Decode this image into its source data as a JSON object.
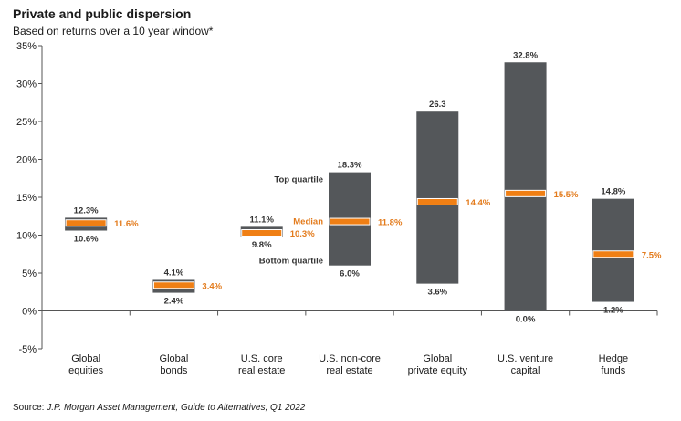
{
  "header": {
    "title": "Private and public dispersion",
    "subtitle": "Based on returns over a 10 year window*"
  },
  "footer": {
    "source_prefix": "Source: ",
    "source_body": "J.P. Morgan Asset Management, Guide to Alternatives, Q1 2022"
  },
  "colors": {
    "box": "#54575a",
    "median": "#f07f14",
    "median_text": "#e37b1c",
    "axis": "#555555"
  },
  "chart_data": {
    "type": "box",
    "title": "Private and public dispersion",
    "subtitle": "Based on returns over a 10 year window*",
    "ylim": [
      -5,
      35
    ],
    "yticks": [
      -5,
      0,
      5,
      10,
      15,
      20,
      25,
      30,
      35
    ],
    "ytick_labels": [
      "-5%",
      "0%",
      "5%",
      "10%",
      "15%",
      "20%",
      "25%",
      "30%",
      "35%"
    ],
    "grid": false,
    "categories": [
      [
        "Global",
        "equities"
      ],
      [
        "Global",
        "bonds"
      ],
      [
        "U.S. core",
        "real estate"
      ],
      [
        "U.S. non-core",
        "real estate"
      ],
      [
        "Global",
        "private equity"
      ],
      [
        "U.S. venture",
        "capital"
      ],
      [
        "Hedge",
        "funds"
      ]
    ],
    "series": [
      {
        "top": 12.3,
        "bottom": 10.6,
        "median": 11.6,
        "top_label": "12.3%",
        "bottom_label": "10.6%",
        "median_label": "11.6%"
      },
      {
        "top": 4.1,
        "bottom": 2.4,
        "median": 3.4,
        "top_label": "4.1%",
        "bottom_label": "2.4%",
        "median_label": "3.4%"
      },
      {
        "top": 11.1,
        "bottom": 9.8,
        "median": 10.3,
        "top_label": "11.1%",
        "bottom_label": "9.8%",
        "median_label": "10.3%"
      },
      {
        "top": 18.3,
        "bottom": 6.0,
        "median": 11.8,
        "top_label": "18.3%",
        "bottom_label": "6.0%",
        "median_label": "11.8%"
      },
      {
        "top": 26.3,
        "bottom": 3.6,
        "median": 14.4,
        "top_label": "26.3",
        "bottom_label": "3.6%",
        "median_label": "14.4%"
      },
      {
        "top": 32.8,
        "bottom": 0.0,
        "median": 15.5,
        "top_label": "32.8%",
        "bottom_label": "0.0%",
        "median_label": "15.5%"
      },
      {
        "top": 14.8,
        "bottom": 1.2,
        "median": 7.5,
        "top_label": "14.8%",
        "bottom_label": "1.2%",
        "median_label": "7.5%"
      }
    ],
    "annotations": {
      "top_quartile": "Top quartile",
      "median": "Median",
      "bottom_quartile": "Bottom quartile"
    }
  }
}
